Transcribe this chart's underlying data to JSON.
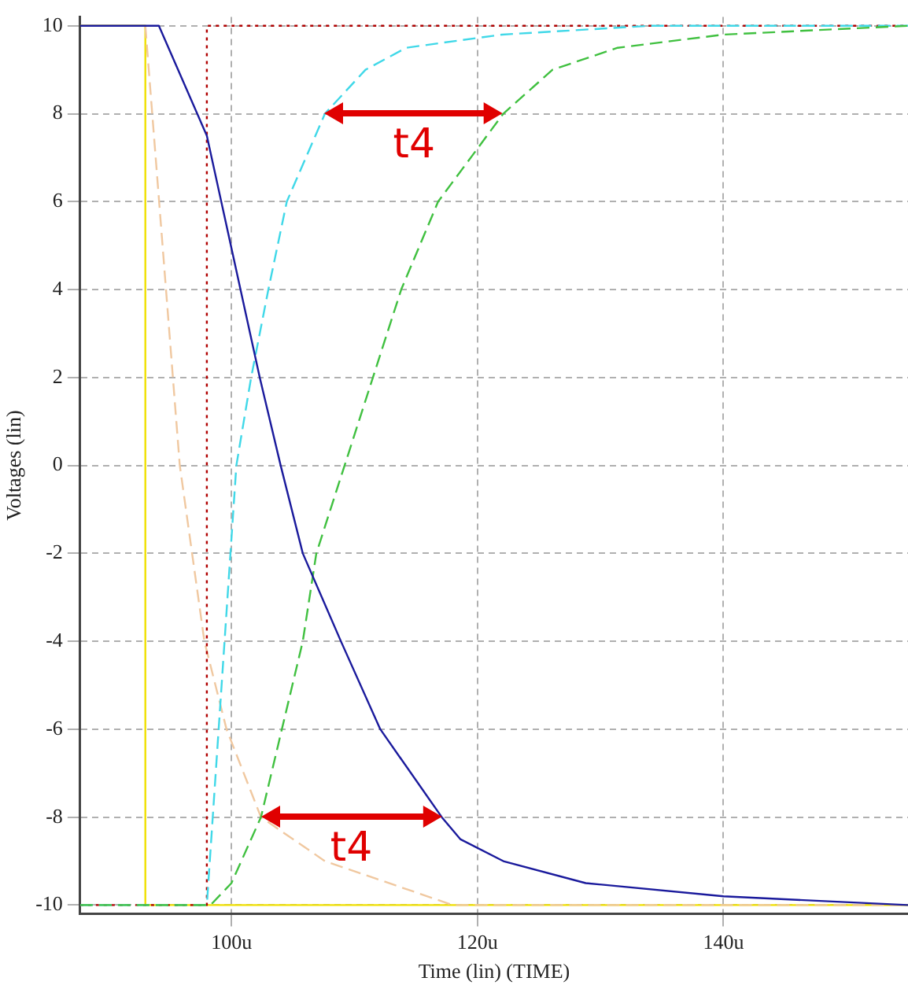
{
  "chart_data": {
    "type": "line",
    "xlabel": "Time (lin) (TIME)",
    "ylabel": "Voltages (lin)",
    "xlim": [
      87.7,
      155
    ],
    "ylim": [
      -10.2,
      10.2
    ],
    "xticks": [
      {
        "value": 100,
        "label": "100u"
      },
      {
        "value": 120,
        "label": "120u"
      },
      {
        "value": 140,
        "label": "140u"
      }
    ],
    "yticks": [
      -10,
      -8,
      -6,
      -4,
      -2,
      0,
      2,
      4,
      6,
      8,
      10
    ],
    "grid": true,
    "legend": false,
    "marker": "none",
    "series": [
      {
        "color": "#f0e000",
        "line_style": "solid",
        "x": [
          87.7,
          93,
          93,
          155
        ],
        "values": [
          10,
          10,
          -10,
          -10
        ]
      },
      {
        "color": "#f0c8a0",
        "line_style": "dashed",
        "x": [
          93,
          95.8,
          97.8,
          99.6,
          102.4,
          107.6,
          118,
          155
        ],
        "values": [
          10,
          0,
          -4,
          -6,
          -8,
          -9,
          -10,
          -10
        ]
      },
      {
        "color": "#b00000",
        "line_style": "dotted",
        "x": [
          87.7,
          98,
          98,
          155
        ],
        "values": [
          -10,
          -10,
          10,
          10
        ]
      },
      {
        "color": "#40d8e8",
        "line_style": "dashed",
        "x": [
          87.7,
          98,
          100.4,
          101.6,
          103,
          104.5,
          107.6,
          110.9,
          114.2,
          122,
          134,
          155
        ],
        "values": [
          -10,
          -10,
          0,
          2,
          4,
          6,
          8,
          9,
          9.5,
          9.8,
          10,
          10
        ]
      },
      {
        "color": "#40c040",
        "line_style": "dashed",
        "x": [
          87.7,
          98.3,
          100,
          102.4,
          105.8,
          106.9,
          109.2,
          111.5,
          113.8,
          116.8,
          122.1,
          126.1,
          131.4,
          140,
          155
        ],
        "values": [
          -10,
          -10,
          -9.5,
          -8,
          -4,
          -2,
          0,
          2,
          4,
          6,
          8,
          9,
          9.5,
          9.8,
          10
        ]
      },
      {
        "color": "#1a1a9c",
        "line_style": "solid",
        "x": [
          87.7,
          94.1,
          98,
          102.3,
          104,
          105.8,
          108.9,
          112.1,
          117.1,
          118.6,
          122.1,
          128.8,
          140,
          155
        ],
        "values": [
          10,
          10,
          7.5,
          2,
          0,
          -2,
          -4,
          -6,
          -8,
          -8.5,
          -9,
          -9.5,
          -9.8,
          -10
        ]
      }
    ],
    "annotations": [
      {
        "text": "t4",
        "x": 122.1,
        "y": 8
      },
      {
        "text": "t4",
        "x": 117.1,
        "y": -8
      }
    ]
  }
}
